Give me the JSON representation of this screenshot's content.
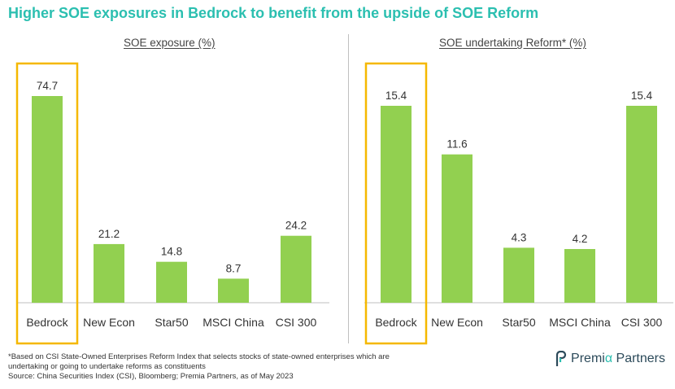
{
  "title": "Higher SOE exposures in Bedrock to benefit from the upside of SOE Reform",
  "colors": {
    "bar": "#92d050",
    "highlight": "#f5b800",
    "title": "#2bbfb0",
    "axis": "#bfbfbf"
  },
  "chart_data": [
    {
      "type": "bar",
      "title": "SOE exposure (%)",
      "categories": [
        "Bedrock",
        "New Econ",
        "Star50",
        "MSCI China",
        "CSI 300"
      ],
      "values": [
        74.7,
        21.2,
        14.8,
        8.7,
        24.2
      ],
      "value_labels": [
        "74.7",
        "21.2",
        "14.8",
        "8.7",
        "24.2"
      ],
      "highlight_category": "Bedrock",
      "ylim": [
        0,
        80
      ]
    },
    {
      "type": "bar",
      "title": "SOE undertaking Reform* (%)",
      "categories": [
        "Bedrock",
        "New Econ",
        "Star50",
        "MSCI China",
        "CSI 300"
      ],
      "values": [
        15.4,
        11.6,
        4.3,
        4.2,
        15.4
      ],
      "value_labels": [
        "15.4",
        "11.6",
        "4.3",
        "4.2",
        "15.4"
      ],
      "highlight_category": "Bedrock",
      "ylim": [
        0,
        16.5
      ]
    }
  ],
  "footnote": {
    "line1": "*Based on CSI State-Owned Enterprises Reform Index that selects stocks of state-owned enterprises which are",
    "line2": "undertaking or going to undertake reforms as constituents",
    "source": "Source: China Securities Index (CSI), Bloomberg; Premia Partners, as of May 2023"
  },
  "logo": {
    "part1": "Premi",
    "alpha": "α",
    "part2": " Partners"
  }
}
